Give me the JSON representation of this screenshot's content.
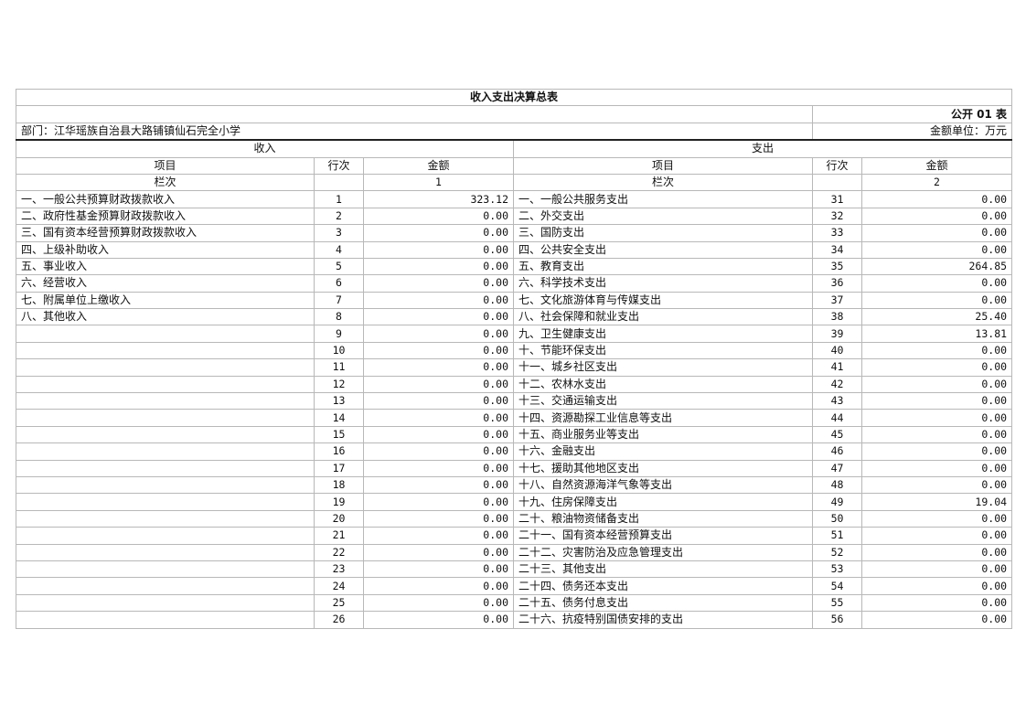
{
  "title": "收入支出决算总表",
  "form_code": "公开 01 表",
  "department": "部门：江华瑶族自治县大路铺镇仙石完全小学",
  "unit": "金额单位：万元",
  "income_header": "收入",
  "expense_header": "支出",
  "columns": {
    "item": "项目",
    "row_no": "行次",
    "amount": "金额",
    "column_no_label": "栏次",
    "income_col_no": "1",
    "expense_col_no": "2"
  },
  "rows": [
    {
      "income_item": "一、一般公共预算财政拨款收入",
      "income_no": "1",
      "income_amount": "323.12",
      "expense_item": "一、一般公共服务支出",
      "expense_no": "31",
      "expense_amount": "0.00"
    },
    {
      "income_item": "二、政府性基金预算财政拨款收入",
      "income_no": "2",
      "income_amount": "0.00",
      "expense_item": "二、外交支出",
      "expense_no": "32",
      "expense_amount": "0.00"
    },
    {
      "income_item": "三、国有资本经营预算财政拨款收入",
      "income_no": "3",
      "income_amount": "0.00",
      "expense_item": "三、国防支出",
      "expense_no": "33",
      "expense_amount": "0.00"
    },
    {
      "income_item": "四、上级补助收入",
      "income_no": "4",
      "income_amount": "0.00",
      "expense_item": "四、公共安全支出",
      "expense_no": "34",
      "expense_amount": "0.00"
    },
    {
      "income_item": "五、事业收入",
      "income_no": "5",
      "income_amount": "0.00",
      "expense_item": "五、教育支出",
      "expense_no": "35",
      "expense_amount": "264.85"
    },
    {
      "income_item": "六、经营收入",
      "income_no": "6",
      "income_amount": "0.00",
      "expense_item": "六、科学技术支出",
      "expense_no": "36",
      "expense_amount": "0.00"
    },
    {
      "income_item": "七、附属单位上缴收入",
      "income_no": "7",
      "income_amount": "0.00",
      "expense_item": "七、文化旅游体育与传媒支出",
      "expense_no": "37",
      "expense_amount": "0.00"
    },
    {
      "income_item": "八、其他收入",
      "income_no": "8",
      "income_amount": "0.00",
      "expense_item": "八、社会保障和就业支出",
      "expense_no": "38",
      "expense_amount": "25.40"
    },
    {
      "income_item": "",
      "income_no": "9",
      "income_amount": "0.00",
      "expense_item": "九、卫生健康支出",
      "expense_no": "39",
      "expense_amount": "13.81"
    },
    {
      "income_item": "",
      "income_no": "10",
      "income_amount": "0.00",
      "expense_item": "十、节能环保支出",
      "expense_no": "40",
      "expense_amount": "0.00"
    },
    {
      "income_item": "",
      "income_no": "11",
      "income_amount": "0.00",
      "expense_item": "十一、城乡社区支出",
      "expense_no": "41",
      "expense_amount": "0.00"
    },
    {
      "income_item": "",
      "income_no": "12",
      "income_amount": "0.00",
      "expense_item": "十二、农林水支出",
      "expense_no": "42",
      "expense_amount": "0.00"
    },
    {
      "income_item": "",
      "income_no": "13",
      "income_amount": "0.00",
      "expense_item": "十三、交通运输支出",
      "expense_no": "43",
      "expense_amount": "0.00"
    },
    {
      "income_item": "",
      "income_no": "14",
      "income_amount": "0.00",
      "expense_item": "十四、资源勘探工业信息等支出",
      "expense_no": "44",
      "expense_amount": "0.00"
    },
    {
      "income_item": "",
      "income_no": "15",
      "income_amount": "0.00",
      "expense_item": "十五、商业服务业等支出",
      "expense_no": "45",
      "expense_amount": "0.00"
    },
    {
      "income_item": "",
      "income_no": "16",
      "income_amount": "0.00",
      "expense_item": "十六、金融支出",
      "expense_no": "46",
      "expense_amount": "0.00"
    },
    {
      "income_item": "",
      "income_no": "17",
      "income_amount": "0.00",
      "expense_item": "十七、援助其他地区支出",
      "expense_no": "47",
      "expense_amount": "0.00"
    },
    {
      "income_item": "",
      "income_no": "18",
      "income_amount": "0.00",
      "expense_item": "十八、自然资源海洋气象等支出",
      "expense_no": "48",
      "expense_amount": "0.00"
    },
    {
      "income_item": "",
      "income_no": "19",
      "income_amount": "0.00",
      "expense_item": "十九、住房保障支出",
      "expense_no": "49",
      "expense_amount": "19.04"
    },
    {
      "income_item": "",
      "income_no": "20",
      "income_amount": "0.00",
      "expense_item": "二十、粮油物资储备支出",
      "expense_no": "50",
      "expense_amount": "0.00"
    },
    {
      "income_item": "",
      "income_no": "21",
      "income_amount": "0.00",
      "expense_item": "二十一、国有资本经营预算支出",
      "expense_no": "51",
      "expense_amount": "0.00"
    },
    {
      "income_item": "",
      "income_no": "22",
      "income_amount": "0.00",
      "expense_item": "二十二、灾害防治及应急管理支出",
      "expense_no": "52",
      "expense_amount": "0.00"
    },
    {
      "income_item": "",
      "income_no": "23",
      "income_amount": "0.00",
      "expense_item": "二十三、其他支出",
      "expense_no": "53",
      "expense_amount": "0.00"
    },
    {
      "income_item": "",
      "income_no": "24",
      "income_amount": "0.00",
      "expense_item": "二十四、债务还本支出",
      "expense_no": "54",
      "expense_amount": "0.00"
    },
    {
      "income_item": "",
      "income_no": "25",
      "income_amount": "0.00",
      "expense_item": "二十五、债务付息支出",
      "expense_no": "55",
      "expense_amount": "0.00"
    },
    {
      "income_item": "",
      "income_no": "26",
      "income_amount": "0.00",
      "expense_item": "二十六、抗疫特别国债安排的支出",
      "expense_no": "56",
      "expense_amount": "0.00"
    }
  ]
}
